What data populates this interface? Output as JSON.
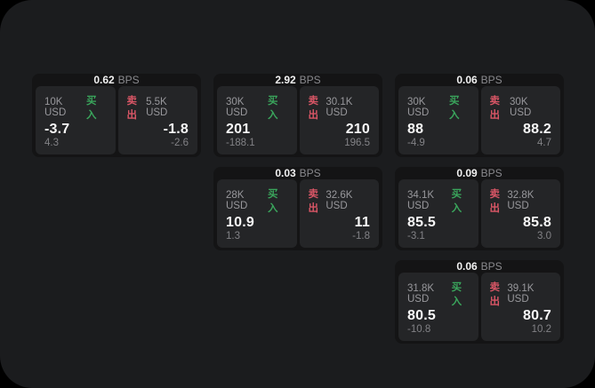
{
  "labels": {
    "bps_unit": "BPS",
    "buy": "买入",
    "sell": "卖出"
  },
  "colors": {
    "page_background": "#1b1c1e",
    "card_background": "#141415",
    "panel_background": "#242527",
    "buy_accent": "#3aa65c",
    "sell_accent": "#d95666",
    "primary_text": "#f7f7f7",
    "secondary_text": "#98989c"
  },
  "cards": [
    {
      "bps": "0.62",
      "buy": {
        "amount": "10K USD",
        "price": "-3.7",
        "change": "4.3"
      },
      "sell": {
        "amount": "5.5K USD",
        "price": "-1.8",
        "change": "-2.6"
      }
    },
    {
      "bps": "2.92",
      "buy": {
        "amount": "30K USD",
        "price": "201",
        "change": "-188.1"
      },
      "sell": {
        "amount": "30.1K USD",
        "price": "210",
        "change": "196.5"
      }
    },
    {
      "bps": "0.06",
      "buy": {
        "amount": "30K USD",
        "price": "88",
        "change": "-4.9"
      },
      "sell": {
        "amount": "30K USD",
        "price": "88.2",
        "change": "4.7"
      }
    },
    {
      "bps": "0.03",
      "buy": {
        "amount": "28K USD",
        "price": "10.9",
        "change": "1.3"
      },
      "sell": {
        "amount": "32.6K USD",
        "price": "11",
        "change": "-1.8"
      }
    },
    {
      "bps": "0.09",
      "buy": {
        "amount": "34.1K USD",
        "price": "85.5",
        "change": "-3.1"
      },
      "sell": {
        "amount": "32.8K USD",
        "price": "85.8",
        "change": "3.0"
      }
    },
    {
      "bps": "0.06",
      "buy": {
        "amount": "31.8K USD",
        "price": "80.5",
        "change": "-10.8"
      },
      "sell": {
        "amount": "39.1K USD",
        "price": "80.7",
        "change": "10.2"
      }
    }
  ]
}
